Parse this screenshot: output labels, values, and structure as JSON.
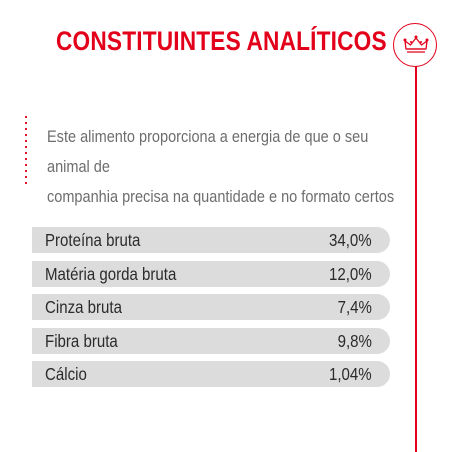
{
  "title": "CONSTITUINTES ANALÍTICOS",
  "brand": {
    "icon": "crown-icon",
    "accent_color": "#e2001a"
  },
  "description": {
    "line1": "Este alimento proporciona a energia de que o seu animal de",
    "line2": "companhia precisa na quantidade e no formato certos"
  },
  "constituents": [
    {
      "label": "Proteína bruta",
      "value": "34,0%"
    },
    {
      "label": "Matéria gorda bruta",
      "value": "12,0%"
    },
    {
      "label": "Cinza bruta",
      "value": "7,4%"
    },
    {
      "label": "Fibra bruta",
      "value": "9,8%"
    },
    {
      "label": "Cálcio",
      "value": "1,04%"
    }
  ],
  "colors": {
    "row_background": "#dcdcdc",
    "text": "#2b2b2b",
    "description_text": "#6d6d6d"
  }
}
